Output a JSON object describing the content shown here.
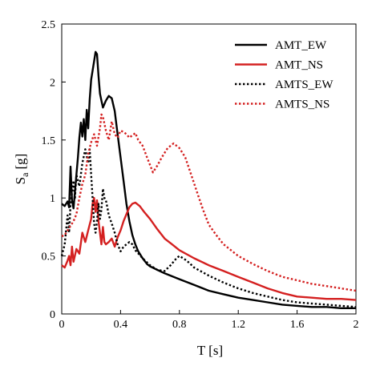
{
  "chart_data": {
    "type": "line",
    "xlabel": "T [s]",
    "ylabel_main": "S",
    "ylabel_sub": "a",
    "ylabel_unit": "[g]",
    "xlim": [
      0,
      2
    ],
    "ylim": [
      0,
      2.5
    ],
    "x_ticks": [
      "0",
      "0.4",
      "0.8",
      "1.2",
      "1.6",
      "2"
    ],
    "y_ticks": [
      "0",
      "0.5",
      "1",
      "1.5",
      "2",
      "2.5"
    ],
    "grid": false,
    "legend_position": "top-right",
    "series": [
      {
        "name": "AMT_EW",
        "color": "#000000",
        "style": "solid",
        "points": [
          [
            0.0,
            0.95
          ],
          [
            0.02,
            0.93
          ],
          [
            0.04,
            0.97
          ],
          [
            0.05,
            0.92
          ],
          [
            0.06,
            1.27
          ],
          [
            0.07,
            0.98
          ],
          [
            0.08,
            0.91
          ],
          [
            0.1,
            1.2
          ],
          [
            0.11,
            1.35
          ],
          [
            0.12,
            1.52
          ],
          [
            0.13,
            1.65
          ],
          [
            0.14,
            1.53
          ],
          [
            0.15,
            1.68
          ],
          [
            0.16,
            1.5
          ],
          [
            0.17,
            1.76
          ],
          [
            0.18,
            1.6
          ],
          [
            0.19,
            1.85
          ],
          [
            0.2,
            2.02
          ],
          [
            0.22,
            2.18
          ],
          [
            0.23,
            2.26
          ],
          [
            0.24,
            2.24
          ],
          [
            0.25,
            2.05
          ],
          [
            0.26,
            1.9
          ],
          [
            0.27,
            1.84
          ],
          [
            0.28,
            1.78
          ],
          [
            0.3,
            1.84
          ],
          [
            0.32,
            1.88
          ],
          [
            0.34,
            1.86
          ],
          [
            0.36,
            1.75
          ],
          [
            0.38,
            1.55
          ],
          [
            0.4,
            1.35
          ],
          [
            0.42,
            1.15
          ],
          [
            0.44,
            0.95
          ],
          [
            0.46,
            0.8
          ],
          [
            0.48,
            0.68
          ],
          [
            0.5,
            0.6
          ],
          [
            0.52,
            0.54
          ],
          [
            0.55,
            0.48
          ],
          [
            0.58,
            0.43
          ],
          [
            0.6,
            0.41
          ],
          [
            0.65,
            0.38
          ],
          [
            0.7,
            0.35
          ],
          [
            0.8,
            0.3
          ],
          [
            0.9,
            0.25
          ],
          [
            1.0,
            0.2
          ],
          [
            1.1,
            0.17
          ],
          [
            1.2,
            0.14
          ],
          [
            1.3,
            0.12
          ],
          [
            1.4,
            0.1
          ],
          [
            1.5,
            0.08
          ],
          [
            1.6,
            0.07
          ],
          [
            1.7,
            0.06
          ],
          [
            1.8,
            0.06
          ],
          [
            1.9,
            0.05
          ],
          [
            2.0,
            0.05
          ]
        ]
      },
      {
        "name": "AMT_NS",
        "color": "#d42020",
        "style": "solid",
        "points": [
          [
            0.0,
            0.42
          ],
          [
            0.02,
            0.4
          ],
          [
            0.04,
            0.46
          ],
          [
            0.05,
            0.5
          ],
          [
            0.06,
            0.42
          ],
          [
            0.07,
            0.58
          ],
          [
            0.08,
            0.45
          ],
          [
            0.1,
            0.56
          ],
          [
            0.12,
            0.52
          ],
          [
            0.14,
            0.7
          ],
          [
            0.16,
            0.62
          ],
          [
            0.18,
            0.72
          ],
          [
            0.2,
            0.82
          ],
          [
            0.21,
            0.95
          ],
          [
            0.22,
            1.0
          ],
          [
            0.23,
            0.88
          ],
          [
            0.24,
            0.98
          ],
          [
            0.25,
            0.8
          ],
          [
            0.26,
            0.7
          ],
          [
            0.27,
            0.6
          ],
          [
            0.28,
            0.75
          ],
          [
            0.29,
            0.62
          ],
          [
            0.3,
            0.6
          ],
          [
            0.32,
            0.62
          ],
          [
            0.34,
            0.65
          ],
          [
            0.36,
            0.58
          ],
          [
            0.38,
            0.66
          ],
          [
            0.4,
            0.72
          ],
          [
            0.42,
            0.8
          ],
          [
            0.44,
            0.86
          ],
          [
            0.46,
            0.92
          ],
          [
            0.48,
            0.95
          ],
          [
            0.5,
            0.96
          ],
          [
            0.53,
            0.93
          ],
          [
            0.56,
            0.88
          ],
          [
            0.6,
            0.82
          ],
          [
            0.65,
            0.73
          ],
          [
            0.7,
            0.65
          ],
          [
            0.75,
            0.6
          ],
          [
            0.8,
            0.55
          ],
          [
            0.9,
            0.48
          ],
          [
            1.0,
            0.42
          ],
          [
            1.1,
            0.37
          ],
          [
            1.2,
            0.32
          ],
          [
            1.3,
            0.27
          ],
          [
            1.4,
            0.22
          ],
          [
            1.5,
            0.18
          ],
          [
            1.6,
            0.15
          ],
          [
            1.7,
            0.14
          ],
          [
            1.8,
            0.13
          ],
          [
            1.9,
            0.13
          ],
          [
            2.0,
            0.12
          ]
        ]
      },
      {
        "name": "AMTS_EW",
        "color": "#000000",
        "style": "dotted",
        "points": [
          [
            0.0,
            0.5
          ],
          [
            0.02,
            0.6
          ],
          [
            0.04,
            0.85
          ],
          [
            0.05,
            0.7
          ],
          [
            0.06,
            0.95
          ],
          [
            0.08,
            1.15
          ],
          [
            0.09,
            1.0
          ],
          [
            0.1,
            1.2
          ],
          [
            0.12,
            1.1
          ],
          [
            0.14,
            1.3
          ],
          [
            0.16,
            1.42
          ],
          [
            0.18,
            1.3
          ],
          [
            0.19,
            1.42
          ],
          [
            0.2,
            1.2
          ],
          [
            0.21,
            1.0
          ],
          [
            0.22,
            0.78
          ],
          [
            0.23,
            0.7
          ],
          [
            0.24,
            0.8
          ],
          [
            0.25,
            0.95
          ],
          [
            0.26,
            0.82
          ],
          [
            0.27,
            0.9
          ],
          [
            0.28,
            1.08
          ],
          [
            0.29,
            1.0
          ],
          [
            0.3,
            0.98
          ],
          [
            0.31,
            0.92
          ],
          [
            0.32,
            0.85
          ],
          [
            0.34,
            0.78
          ],
          [
            0.36,
            0.7
          ],
          [
            0.38,
            0.6
          ],
          [
            0.4,
            0.54
          ],
          [
            0.42,
            0.58
          ],
          [
            0.44,
            0.6
          ],
          [
            0.46,
            0.62
          ],
          [
            0.48,
            0.6
          ],
          [
            0.5,
            0.55
          ],
          [
            0.55,
            0.48
          ],
          [
            0.6,
            0.42
          ],
          [
            0.65,
            0.38
          ],
          [
            0.7,
            0.37
          ],
          [
            0.74,
            0.42
          ],
          [
            0.78,
            0.48
          ],
          [
            0.8,
            0.5
          ],
          [
            0.85,
            0.46
          ],
          [
            0.9,
            0.4
          ],
          [
            1.0,
            0.33
          ],
          [
            1.1,
            0.27
          ],
          [
            1.2,
            0.22
          ],
          [
            1.3,
            0.18
          ],
          [
            1.4,
            0.15
          ],
          [
            1.5,
            0.12
          ],
          [
            1.6,
            0.1
          ],
          [
            1.7,
            0.09
          ],
          [
            1.8,
            0.08
          ],
          [
            1.9,
            0.07
          ],
          [
            2.0,
            0.06
          ]
        ]
      },
      {
        "name": "AMTS_NS",
        "color": "#d42020",
        "style": "dotted",
        "points": [
          [
            0.0,
            0.67
          ],
          [
            0.02,
            0.68
          ],
          [
            0.04,
            0.72
          ],
          [
            0.06,
            0.76
          ],
          [
            0.08,
            0.8
          ],
          [
            0.1,
            0.86
          ],
          [
            0.12,
            1.0
          ],
          [
            0.14,
            1.12
          ],
          [
            0.16,
            1.2
          ],
          [
            0.18,
            1.38
          ],
          [
            0.2,
            1.48
          ],
          [
            0.22,
            1.55
          ],
          [
            0.24,
            1.45
          ],
          [
            0.26,
            1.6
          ],
          [
            0.27,
            1.72
          ],
          [
            0.28,
            1.7
          ],
          [
            0.3,
            1.58
          ],
          [
            0.32,
            1.5
          ],
          [
            0.34,
            1.66
          ],
          [
            0.36,
            1.55
          ],
          [
            0.38,
            1.52
          ],
          [
            0.4,
            1.58
          ],
          [
            0.42,
            1.57
          ],
          [
            0.44,
            1.55
          ],
          [
            0.46,
            1.52
          ],
          [
            0.5,
            1.56
          ],
          [
            0.52,
            1.5
          ],
          [
            0.55,
            1.45
          ],
          [
            0.58,
            1.35
          ],
          [
            0.62,
            1.22
          ],
          [
            0.65,
            1.28
          ],
          [
            0.68,
            1.35
          ],
          [
            0.72,
            1.43
          ],
          [
            0.76,
            1.47
          ],
          [
            0.8,
            1.43
          ],
          [
            0.84,
            1.35
          ],
          [
            0.88,
            1.2
          ],
          [
            0.92,
            1.05
          ],
          [
            0.96,
            0.9
          ],
          [
            1.0,
            0.77
          ],
          [
            1.05,
            0.68
          ],
          [
            1.1,
            0.6
          ],
          [
            1.2,
            0.5
          ],
          [
            1.3,
            0.43
          ],
          [
            1.4,
            0.37
          ],
          [
            1.5,
            0.32
          ],
          [
            1.6,
            0.29
          ],
          [
            1.7,
            0.26
          ],
          [
            1.8,
            0.24
          ],
          [
            1.9,
            0.22
          ],
          [
            2.0,
            0.2
          ]
        ]
      }
    ]
  }
}
